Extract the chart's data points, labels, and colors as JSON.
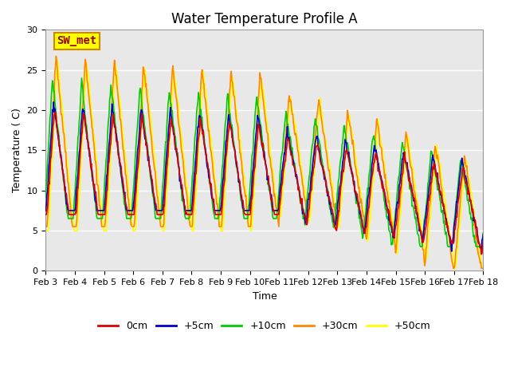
{
  "title": "Water Temperature Profile A",
  "xlabel": "Time",
  "ylabel": "Temperature ( C)",
  "ylim": [
    0,
    30
  ],
  "background_color": "#e8e8e8",
  "fig_background": "#ffffff",
  "grid_color": "#ffffff",
  "legend_label": "SW_met",
  "legend_box_color": "#ffff00",
  "legend_box_edge": "#cc8800",
  "series_colors": {
    "0cm": "#dd0000",
    "+5cm": "#0000cc",
    "+10cm": "#00cc00",
    "+30cm": "#ff8800",
    "+50cm": "#ffff00"
  },
  "series_linewidth": 1.2,
  "tick_labels": [
    "Feb 3",
    "Feb 4",
    "Feb 5",
    "Feb 6",
    "Feb 7",
    "Feb 8",
    "Feb 9",
    "Feb 10",
    "Feb 11",
    "Feb 12",
    "Feb 13",
    "Feb 14",
    "Feb 15",
    "Feb 16",
    "Feb 17",
    "Feb 18"
  ],
  "title_fontsize": 12,
  "axis_label_fontsize": 9,
  "tick_fontsize": 8,
  "legend_fontsize": 9
}
